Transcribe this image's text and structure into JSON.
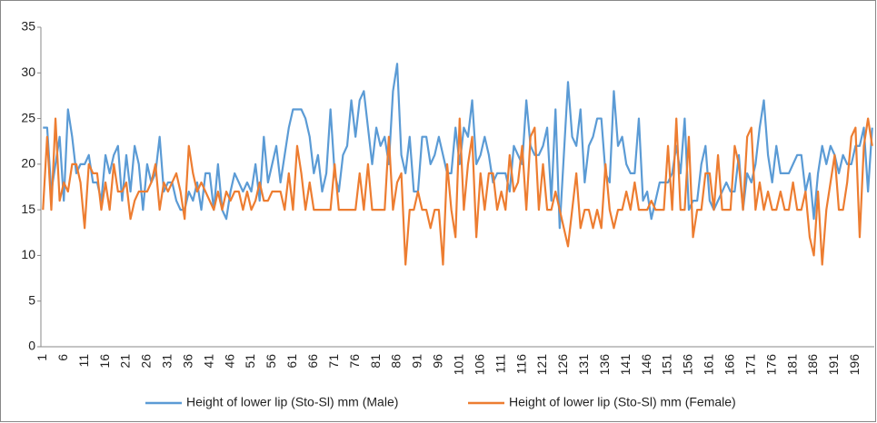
{
  "chart_data": {
    "type": "line",
    "categories": [
      "1",
      null,
      null,
      null,
      null,
      "6",
      null,
      null,
      null,
      null,
      "11",
      null,
      null,
      null,
      null,
      "16",
      null,
      null,
      null,
      null,
      "21",
      null,
      null,
      null,
      null,
      "26",
      null,
      null,
      null,
      null,
      "31",
      null,
      null,
      null,
      null,
      "36",
      null,
      null,
      null,
      null,
      "41",
      null,
      null,
      null,
      null,
      "46",
      null,
      null,
      null,
      null,
      "51",
      null,
      null,
      null,
      null,
      "56",
      null,
      null,
      null,
      null,
      "61",
      null,
      null,
      null,
      null,
      "66",
      null,
      null,
      null,
      null,
      "71",
      null,
      null,
      null,
      null,
      "76",
      null,
      null,
      null,
      null,
      "81",
      null,
      null,
      null,
      null,
      "86",
      null,
      null,
      null,
      null,
      "91",
      null,
      null,
      null,
      null,
      "96",
      null,
      null,
      null,
      null,
      "101",
      null,
      null,
      null,
      null,
      "106",
      null,
      null,
      null,
      null,
      "111",
      null,
      null,
      null,
      null,
      "116",
      null,
      null,
      null,
      null,
      "121",
      null,
      null,
      null,
      null,
      "126",
      null,
      null,
      null,
      null,
      "131",
      null,
      null,
      null,
      null,
      "136",
      null,
      null,
      null,
      null,
      "141",
      null,
      null,
      null,
      null,
      "146",
      null,
      null,
      null,
      null,
      "151",
      null,
      null,
      null,
      null,
      "156",
      null,
      null,
      null,
      null,
      "161",
      null,
      null,
      null,
      null,
      "166",
      null,
      null,
      null,
      null,
      "171",
      null,
      null,
      null,
      null,
      "176",
      null,
      null,
      null,
      null,
      "181",
      null,
      null,
      null,
      null,
      "186",
      null,
      null,
      null,
      null,
      "191",
      null,
      null,
      null,
      null,
      "196",
      null,
      null,
      null,
      null
    ],
    "series": [
      {
        "name": "Height of lower lip (Sto-Sl) mm (Male)",
        "color": "#5b9bd5",
        "values": [
          24,
          24,
          17,
          20,
          23,
          16,
          26,
          23,
          19,
          20,
          20,
          21,
          18,
          18,
          16,
          21,
          19,
          21,
          22,
          16,
          21,
          17,
          22,
          20,
          15,
          20,
          18,
          19,
          23,
          17,
          18,
          18,
          16,
          15,
          15,
          17,
          16,
          18,
          15,
          19,
          19,
          15,
          20,
          15,
          14,
          17,
          19,
          18,
          17,
          18,
          17,
          20,
          16,
          23,
          18,
          20,
          22,
          18,
          21,
          24,
          26,
          26,
          26,
          25,
          23,
          19,
          21,
          17,
          19,
          26,
          19,
          17,
          21,
          22,
          27,
          23,
          27,
          28,
          24,
          20,
          24,
          22,
          23,
          20,
          28,
          31,
          21,
          19,
          23,
          17,
          17,
          23,
          23,
          20,
          21,
          23,
          21,
          19,
          19,
          24,
          20,
          24,
          23,
          27,
          20,
          21,
          23,
          21,
          18,
          19,
          19,
          19,
          17,
          22,
          21,
          20,
          27,
          22,
          21,
          21,
          22,
          24,
          16,
          26,
          13,
          21,
          29,
          23,
          22,
          26,
          18,
          22,
          23,
          25,
          25,
          19,
          18,
          28,
          22,
          23,
          20,
          19,
          19,
          25,
          16,
          17,
          14,
          16,
          18,
          18,
          18,
          19,
          22,
          19,
          25,
          15,
          16,
          16,
          20,
          22,
          16,
          15,
          16,
          17,
          18,
          17,
          17,
          21,
          15,
          19,
          18,
          20,
          24,
          27,
          21,
          18,
          22,
          19,
          19,
          19,
          20,
          21,
          21,
          17,
          19,
          14,
          19,
          22,
          20,
          22,
          21,
          19,
          21,
          20,
          20,
          22,
          22,
          24,
          17,
          24
        ]
      },
      {
        "name": "Height of lower lip (Sto-Sl) mm (Female)",
        "color": "#ed7d31",
        "values": [
          15,
          23,
          15,
          25,
          16,
          18,
          17,
          20,
          20,
          18,
          13,
          20,
          19,
          19,
          15,
          18,
          15,
          20,
          17,
          17,
          18,
          14,
          16,
          17,
          17,
          17,
          18,
          20,
          15,
          18,
          17,
          18,
          19,
          17,
          14,
          22,
          19,
          17,
          18,
          17,
          16,
          15,
          17,
          15,
          17,
          16,
          17,
          17,
          15,
          17,
          15,
          16,
          18,
          16,
          16,
          17,
          17,
          17,
          15,
          19,
          15,
          22,
          19,
          15,
          18,
          15,
          15,
          15,
          15,
          15,
          20,
          15,
          15,
          15,
          15,
          15,
          19,
          15,
          20,
          15,
          15,
          15,
          15,
          23,
          15,
          18,
          19,
          9,
          15,
          15,
          17,
          15,
          15,
          13,
          15,
          15,
          9,
          20,
          15,
          12,
          25,
          15,
          20,
          23,
          12,
          19,
          15,
          19,
          19,
          15,
          17,
          15,
          21,
          17,
          18,
          22,
          15,
          23,
          24,
          15,
          20,
          15,
          15,
          17,
          15,
          13,
          11,
          15,
          19,
          13,
          15,
          15,
          13,
          15,
          13,
          20,
          15,
          13,
          15,
          15,
          17,
          15,
          18,
          15,
          15,
          15,
          16,
          15,
          15,
          15,
          22,
          15,
          25,
          15,
          15,
          23,
          12,
          15,
          15,
          19,
          19,
          15,
          21,
          15,
          15,
          15,
          22,
          20,
          15,
          23,
          24,
          15,
          18,
          15,
          17,
          15,
          15,
          17,
          15,
          15,
          18,
          15,
          15,
          17,
          12,
          10,
          17,
          9,
          15,
          18,
          21,
          15,
          15,
          18,
          23,
          24,
          12,
          22,
          25,
          22
        ]
      }
    ],
    "ylim": [
      0,
      35
    ],
    "yticks": [
      0,
      5,
      10,
      15,
      20,
      25,
      30,
      35
    ],
    "legend": "bottom"
  }
}
